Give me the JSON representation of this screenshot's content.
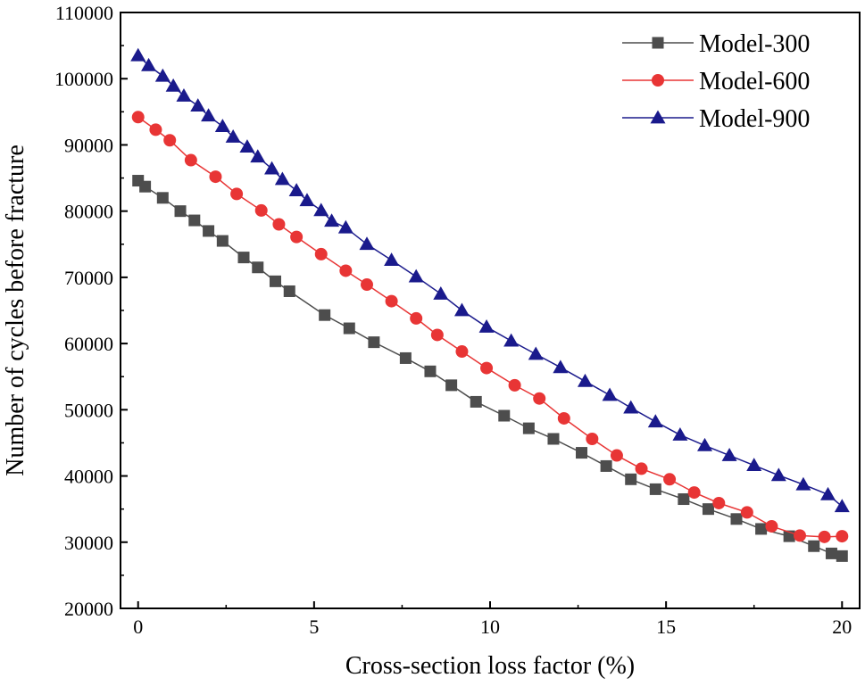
{
  "chart_data": {
    "type": "line",
    "title": "",
    "xlabel": "Cross-section loss factor (%)",
    "ylabel": "Number of cycles before fracture",
    "xlim": [
      -0.5,
      20.5
    ],
    "ylim": [
      20000,
      110000
    ],
    "xticks": [
      0,
      5,
      10,
      15,
      20
    ],
    "yticks": [
      20000,
      30000,
      40000,
      50000,
      60000,
      70000,
      80000,
      90000,
      100000,
      110000
    ],
    "grid": false,
    "legend_position": "top-right",
    "series": [
      {
        "name": "Model-300",
        "color": "#4d4d4d",
        "marker": "square",
        "x": [
          0,
          0.2,
          0.7,
          1.2,
          1.6,
          2.0,
          2.4,
          3.0,
          3.4,
          3.9,
          4.3,
          5.3,
          6.0,
          6.7,
          7.6,
          8.3,
          8.9,
          9.6,
          10.4,
          11.1,
          11.8,
          12.6,
          13.3,
          14.0,
          14.7,
          15.5,
          16.2,
          17.0,
          17.7,
          18.5,
          19.2,
          19.7,
          20.0
        ],
        "y": [
          84600,
          83700,
          82000,
          80000,
          78600,
          77000,
          75500,
          73000,
          71500,
          69400,
          67900,
          64300,
          62300,
          60200,
          57800,
          55800,
          53700,
          51200,
          49100,
          47200,
          45600,
          43500,
          41500,
          39500,
          38000,
          36500,
          35000,
          33500,
          32000,
          30900,
          29400,
          28300,
          27900
        ]
      },
      {
        "name": "Model-600",
        "color": "#e83535",
        "marker": "circle",
        "x": [
          0,
          0.5,
          0.9,
          1.5,
          2.2,
          2.8,
          3.5,
          4.0,
          4.5,
          5.2,
          5.9,
          6.5,
          7.2,
          7.9,
          8.5,
          9.2,
          9.9,
          10.7,
          11.4,
          12.1,
          12.9,
          13.6,
          14.3,
          15.1,
          15.8,
          16.5,
          17.3,
          18.0,
          18.8,
          19.5,
          20.0
        ],
        "y": [
          94200,
          92300,
          90700,
          87700,
          85200,
          82600,
          80100,
          78000,
          76100,
          73500,
          71000,
          68900,
          66400,
          63800,
          61300,
          58800,
          56300,
          53700,
          51700,
          48700,
          45600,
          43100,
          41100,
          39500,
          37500,
          35900,
          34500,
          32400,
          31000,
          30800,
          30900
        ]
      },
      {
        "name": "Model-900",
        "color": "#1a1a8c",
        "marker": "triangle",
        "x": [
          0,
          0.3,
          0.7,
          1.0,
          1.3,
          1.7,
          2.0,
          2.4,
          2.7,
          3.1,
          3.4,
          3.8,
          4.1,
          4.5,
          4.8,
          5.2,
          5.5,
          5.9,
          6.5,
          7.2,
          7.9,
          8.6,
          9.2,
          9.9,
          10.6,
          11.3,
          12.0,
          12.7,
          13.4,
          14.0,
          14.7,
          15.4,
          16.1,
          16.8,
          17.5,
          18.2,
          18.9,
          19.6,
          20.0
        ],
        "y": [
          103500,
          102000,
          100400,
          98900,
          97400,
          95900,
          94400,
          92800,
          91200,
          89700,
          88200,
          86400,
          84800,
          83100,
          81600,
          80100,
          78500,
          77500,
          75000,
          72600,
          70100,
          67500,
          65000,
          62500,
          60400,
          58400,
          56400,
          54300,
          52200,
          50300,
          48200,
          46200,
          44600,
          43100,
          41600,
          40100,
          38700,
          37200,
          35400
        ]
      }
    ]
  }
}
